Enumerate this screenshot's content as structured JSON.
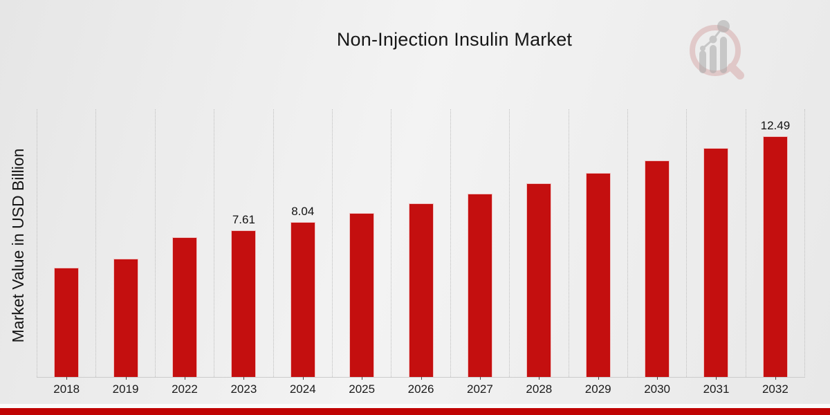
{
  "header": {
    "title": "Non-Injection Insulin Market"
  },
  "chart_data": {
    "type": "bar",
    "title": "Non-Injection Insulin Market",
    "xlabel": "",
    "ylabel": "Market Value in USD Billion",
    "categories": [
      "2018",
      "2019",
      "2022",
      "2023",
      "2024",
      "2025",
      "2026",
      "2027",
      "2028",
      "2029",
      "2030",
      "2031",
      "2032"
    ],
    "values": [
      5.67,
      6.13,
      7.24,
      7.61,
      8.04,
      8.5,
      9.03,
      9.52,
      10.04,
      10.61,
      11.25,
      11.89,
      12.49
    ],
    "bar_labels": [
      "",
      "",
      "",
      "7.61",
      "8.04",
      "",
      "",
      "",
      "",
      "",
      "",
      "",
      "12.49"
    ],
    "ylim": [
      0,
      13.9
    ],
    "grid": "vertical-dotted",
    "legend": "none",
    "bar_color": "#c40f0f",
    "gridline_color": "#bdbdbd"
  },
  "branding": {
    "logo_icon": "magnifier-bar-chart-icon",
    "logo_ring_color": "#d9a6a6",
    "logo_gray_color": "#a9a9a9"
  },
  "footer": {
    "light_band_color": "#fbfbfb",
    "accent_bar_color": "#c00404"
  }
}
